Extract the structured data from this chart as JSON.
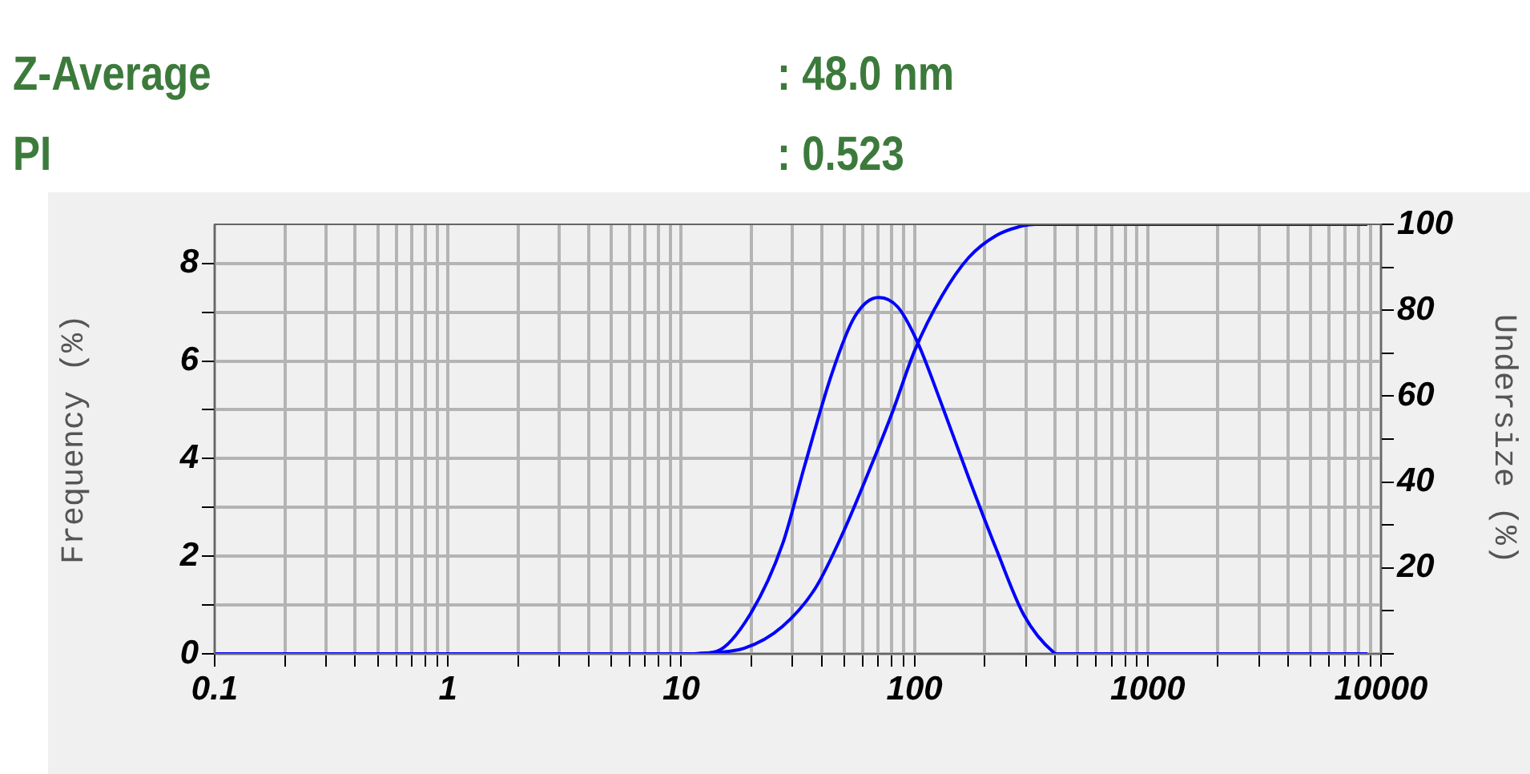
{
  "chart_data": {
    "type": "line",
    "annotations": [
      "Z-Average",
      ": 48.0 nm",
      "PI",
      ": 0.523"
    ],
    "ylabel": "Frequency (%)",
    "y2label": "Undersize (%)",
    "log": "x",
    "grid": true,
    "legend": false,
    "xlim": [
      0.1,
      10000
    ],
    "xticks": [
      0.1,
      {
        "value": 0.2,
        "label": null
      },
      {
        "value": 0.3,
        "label": null
      },
      {
        "value": 0.4,
        "label": null
      },
      {
        "value": 0.5,
        "label": null
      },
      {
        "value": 0.6,
        "label": null
      },
      {
        "value": 0.7,
        "label": null
      },
      {
        "value": 0.8,
        "label": null
      },
      {
        "value": 0.9,
        "label": null
      },
      1,
      {
        "value": 2,
        "label": null
      },
      {
        "value": 3,
        "label": null
      },
      {
        "value": 4,
        "label": null
      },
      {
        "value": 5,
        "label": null
      },
      {
        "value": 6,
        "label": null
      },
      {
        "value": 7,
        "label": null
      },
      {
        "value": 8,
        "label": null
      },
      {
        "value": 9,
        "label": null
      },
      10,
      {
        "value": 20,
        "label": null
      },
      {
        "value": 30,
        "label": null
      },
      {
        "value": 40,
        "label": null
      },
      {
        "value": 50,
        "label": null
      },
      {
        "value": 60,
        "label": null
      },
      {
        "value": 70,
        "label": null
      },
      {
        "value": 80,
        "label": null
      },
      {
        "value": 90,
        "label": null
      },
      100,
      {
        "value": 200,
        "label": null
      },
      {
        "value": 300,
        "label": null
      },
      {
        "value": 400,
        "label": null
      },
      {
        "value": 500,
        "label": null
      },
      {
        "value": 600,
        "label": null
      },
      {
        "value": 700,
        "label": null
      },
      {
        "value": 800,
        "label": null
      },
      {
        "value": 900,
        "label": null
      },
      1000,
      {
        "value": 2000,
        "label": null
      },
      {
        "value": 3000,
        "label": null
      },
      {
        "value": 4000,
        "label": null
      },
      {
        "value": 5000,
        "label": null
      },
      {
        "value": 6000,
        "label": null
      },
      {
        "value": 7000,
        "label": null
      },
      {
        "value": 8000,
        "label": null
      },
      {
        "value": 9000,
        "label": null
      },
      10000
    ],
    "ylim": [
      0,
      8.8
    ],
    "yticks": [
      0,
      {
        "value": 1,
        "label": null
      },
      2,
      {
        "value": 3,
        "label": null
      },
      4,
      {
        "value": 5,
        "label": null
      },
      6,
      {
        "value": 7,
        "label": null
      },
      8
    ],
    "y2lim": [
      0,
      100
    ],
    "y2ticks": [
      {
        "value": 0,
        "label": null
      },
      {
        "value": 10,
        "label": null
      },
      20,
      {
        "value": 30,
        "label": null
      },
      40,
      {
        "value": 50,
        "label": null
      },
      60,
      {
        "value": 70,
        "label": null
      },
      80,
      {
        "value": 90,
        "label": null
      },
      100
    ],
    "series": [
      {
        "color": "#0000ff",
        "axis": "y",
        "x": [
          0.1,
          0.3,
          1,
          11.4,
          14.2,
          19.7,
          27.2,
          33.8,
          44.3,
          55.3,
          70.3,
          85,
          102.7,
          131,
          171,
          224,
          294,
          397,
          406,
          1000,
          8740
        ],
        "values": [
          0,
          0,
          0,
          0,
          0.05,
          0.8,
          2.25,
          3.85,
          5.75,
          6.9,
          7.3,
          7.1,
          6.4,
          5.1,
          3.6,
          2.15,
          0.8,
          0.02,
          0,
          0,
          0
        ]
      },
      {
        "color": "#0000ff",
        "axis": "y2",
        "x": [
          11.4,
          18.6,
          27.2,
          37.7,
          49.4,
          65,
          80.6,
          100,
          131,
          171,
          224,
          294,
          329,
          1000,
          8740
        ],
        "values": [
          0,
          1.3,
          6.4,
          15.4,
          28.2,
          43.6,
          56.4,
          70.5,
          83.3,
          92.3,
          97.4,
          99.7,
          100,
          100,
          100
        ]
      }
    ]
  }
}
